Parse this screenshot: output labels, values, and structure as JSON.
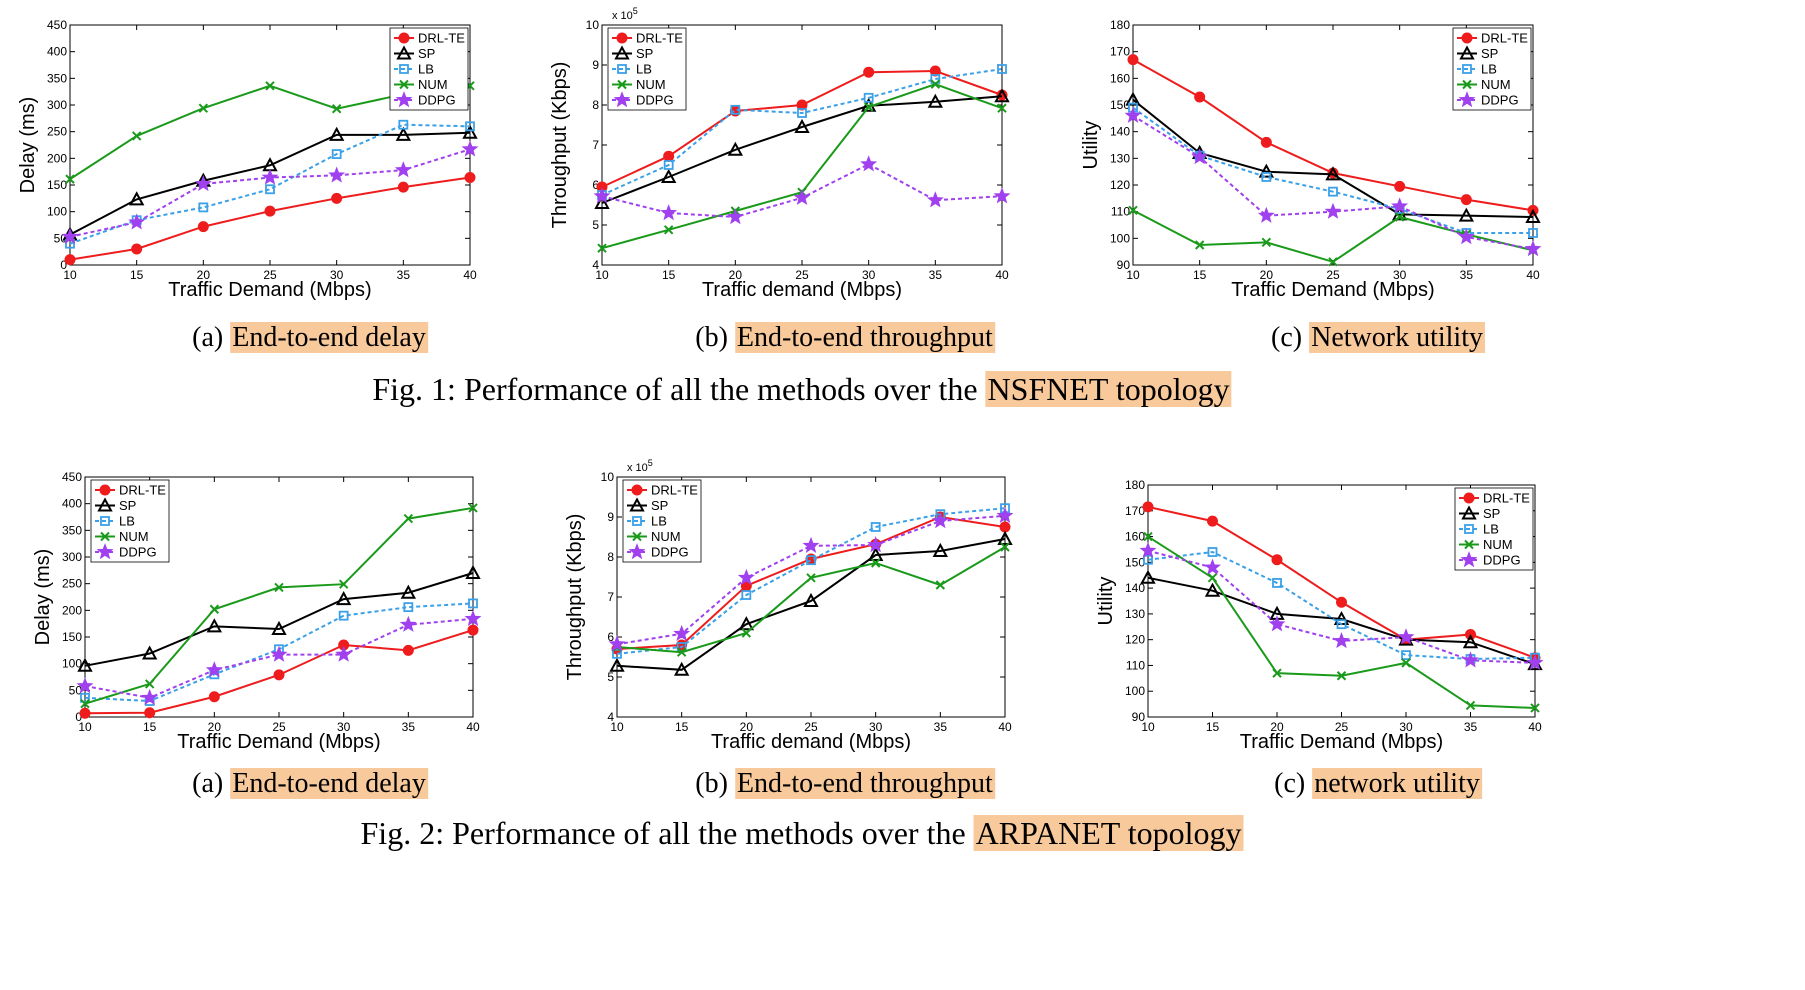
{
  "colors": {
    "DRL-TE": "#ee1c1c",
    "SP": "#000000",
    "LB": "#3aa0e8",
    "NUM": "#1a9a1a",
    "DDPG": "#a040ee",
    "highlight": "#f8c99b"
  },
  "figures": [
    {
      "number": "Fig. 1:",
      "text": "Performance of all the methods over the ",
      "highlight": "NSFNET topology",
      "captions": [
        {
          "prefix": "(a)",
          "label": "End-to-end delay"
        },
        {
          "prefix": "(b)",
          "label": "End-to-end throughput"
        },
        {
          "prefix": "(c)",
          "label": "Network utility"
        }
      ]
    },
    {
      "number": "Fig. 2:",
      "text": "Performance of all the methods over the ",
      "highlight": "ARPANET topology",
      "captions": [
        {
          "prefix": "(a)",
          "label": "End-to-end delay"
        },
        {
          "prefix": "(b)",
          "label": "End-to-end throughput"
        },
        {
          "prefix": "(c)",
          "label": "network utility"
        }
      ]
    }
  ],
  "chart_data": [
    {
      "id": "fig1a",
      "type": "line",
      "xlabel": "Traffic Demand (Mbps)",
      "ylabel": "Delay (ms)",
      "x": [
        10,
        15,
        20,
        25,
        30,
        35,
        40
      ],
      "xlim": [
        10,
        40
      ],
      "ylim": [
        0,
        450
      ],
      "yticks": [
        0,
        50,
        100,
        150,
        200,
        250,
        300,
        350,
        400,
        450
      ],
      "legend": "top-right",
      "grid": false,
      "series": [
        {
          "name": "DRL-TE",
          "values": [
            10,
            30,
            72,
            101,
            125,
            146,
            164
          ]
        },
        {
          "name": "SP",
          "values": [
            57,
            123,
            158,
            187,
            244,
            244,
            248
          ]
        },
        {
          "name": "LB",
          "values": [
            40,
            84,
            108,
            142,
            208,
            263,
            260
          ]
        },
        {
          "name": "NUM",
          "values": [
            161,
            242,
            294,
            336,
            293,
            320,
            336
          ]
        },
        {
          "name": "DDPG",
          "values": [
            53,
            80,
            152,
            164,
            168,
            178,
            217
          ]
        }
      ]
    },
    {
      "id": "fig1b",
      "type": "line",
      "xlabel": "Traffic demand (Mbps)",
      "ylabel": "Throughput (Kbps)",
      "multiplier": "x 10^5",
      "x": [
        10,
        15,
        20,
        25,
        30,
        35,
        40
      ],
      "xlim": [
        10,
        40
      ],
      "ylim": [
        4,
        10
      ],
      "yticks": [
        4,
        5,
        6,
        7,
        8,
        9,
        10
      ],
      "legend": "top-left",
      "grid": false,
      "series": [
        {
          "name": "DRL-TE",
          "values": [
            5.95,
            6.72,
            7.85,
            8.0,
            8.82,
            8.85,
            8.25
          ]
        },
        {
          "name": "SP",
          "values": [
            5.55,
            6.2,
            6.88,
            7.45,
            7.98,
            8.08,
            8.22
          ]
        },
        {
          "name": "LB",
          "values": [
            5.75,
            6.5,
            7.88,
            7.8,
            8.18,
            8.65,
            8.9
          ]
        },
        {
          "name": "NUM",
          "values": [
            4.42,
            4.88,
            5.35,
            5.82,
            7.95,
            8.52,
            7.92
          ]
        },
        {
          "name": "DDPG",
          "values": [
            5.72,
            5.3,
            5.2,
            5.68,
            6.52,
            5.62,
            5.72
          ]
        }
      ]
    },
    {
      "id": "fig1c",
      "type": "line",
      "xlabel": "Traffic Demand (Mbps)",
      "ylabel": "Utility",
      "x": [
        10,
        15,
        20,
        25,
        30,
        35,
        40
      ],
      "xlim": [
        10,
        40
      ],
      "ylim": [
        90,
        180
      ],
      "yticks": [
        90,
        100,
        110,
        120,
        130,
        140,
        150,
        160,
        170,
        180
      ],
      "legend": "top-right",
      "grid": false,
      "series": [
        {
          "name": "DRL-TE",
          "values": [
            167,
            153,
            136,
            124.5,
            119.5,
            114.5,
            110.5
          ]
        },
        {
          "name": "SP",
          "values": [
            152,
            132,
            125,
            124,
            109,
            108.5,
            108
          ]
        },
        {
          "name": "LB",
          "values": [
            149,
            131,
            123,
            117.5,
            111,
            102,
            102
          ]
        },
        {
          "name": "NUM",
          "values": [
            110.5,
            97.5,
            98.5,
            91.2,
            108,
            101.5,
            95.5
          ]
        },
        {
          "name": "DDPG",
          "values": [
            146,
            130.5,
            108.5,
            110,
            112,
            100.5,
            96
          ]
        }
      ]
    },
    {
      "id": "fig2a",
      "type": "line",
      "xlabel": "Traffic Demand (Mbps)",
      "ylabel": "Delay (ms)",
      "x": [
        10,
        15,
        20,
        25,
        30,
        35,
        40
      ],
      "xlim": [
        10,
        40
      ],
      "ylim": [
        0,
        450
      ],
      "yticks": [
        0,
        50,
        100,
        150,
        200,
        250,
        300,
        350,
        400,
        450
      ],
      "legend": "top-left",
      "grid": false,
      "series": [
        {
          "name": "DRL-TE",
          "values": [
            7,
            8,
            38,
            79,
            135,
            125,
            163
          ]
        },
        {
          "name": "SP",
          "values": [
            96,
            119,
            170,
            165,
            221,
            233,
            270
          ]
        },
        {
          "name": "LB",
          "values": [
            36,
            30,
            80,
            127,
            190,
            206,
            213
          ]
        },
        {
          "name": "NUM",
          "values": [
            25,
            62,
            202,
            243,
            249,
            372,
            392
          ]
        },
        {
          "name": "DDPG",
          "values": [
            58,
            36,
            88,
            117,
            117,
            173,
            184
          ]
        }
      ]
    },
    {
      "id": "fig2b",
      "type": "line",
      "xlabel": "Traffic demand (Mbps)",
      "ylabel": "Throughput (Kbps)",
      "multiplier": "x 10^5",
      "x": [
        10,
        15,
        20,
        25,
        30,
        35,
        40
      ],
      "xlim": [
        10,
        40
      ],
      "ylim": [
        4,
        10
      ],
      "yticks": [
        4,
        5,
        6,
        7,
        8,
        9,
        10
      ],
      "legend": "top-left",
      "grid": false,
      "series": [
        {
          "name": "DRL-TE",
          "values": [
            5.7,
            5.8,
            7.28,
            7.95,
            8.32,
            9.0,
            8.75
          ]
        },
        {
          "name": "SP",
          "values": [
            5.28,
            5.18,
            6.32,
            6.9,
            8.05,
            8.15,
            8.45
          ]
        },
        {
          "name": "LB",
          "values": [
            5.58,
            5.75,
            7.05,
            7.92,
            8.75,
            9.07,
            9.22
          ]
        },
        {
          "name": "NUM",
          "values": [
            5.75,
            5.62,
            6.1,
            7.48,
            7.85,
            7.3,
            8.25
          ]
        },
        {
          "name": "DDPG",
          "values": [
            5.82,
            6.08,
            7.48,
            8.28,
            8.3,
            8.9,
            9.03
          ]
        }
      ]
    },
    {
      "id": "fig2c",
      "type": "line",
      "xlabel": "Traffic Demand (Mbps)",
      "ylabel": "Utility",
      "x": [
        10,
        15,
        20,
        25,
        30,
        35,
        40
      ],
      "xlim": [
        10,
        40
      ],
      "ylim": [
        90,
        180
      ],
      "yticks": [
        90,
        100,
        110,
        120,
        130,
        140,
        150,
        160,
        170,
        180
      ],
      "legend": "top-right",
      "grid": false,
      "series": [
        {
          "name": "DRL-TE",
          "values": [
            171.5,
            166,
            151,
            134.5,
            120,
            122,
            113
          ]
        },
        {
          "name": "SP",
          "values": [
            144,
            139,
            130,
            128,
            120,
            119,
            110.5
          ]
        },
        {
          "name": "LB",
          "values": [
            151,
            154,
            142,
            126,
            114,
            112.5,
            113
          ]
        },
        {
          "name": "NUM",
          "values": [
            160,
            144,
            107,
            106,
            111,
            94.5,
            93.5
          ]
        },
        {
          "name": "DDPG",
          "values": [
            154.5,
            148,
            126,
            119.5,
            121,
            112,
            111
          ]
        }
      ]
    }
  ]
}
